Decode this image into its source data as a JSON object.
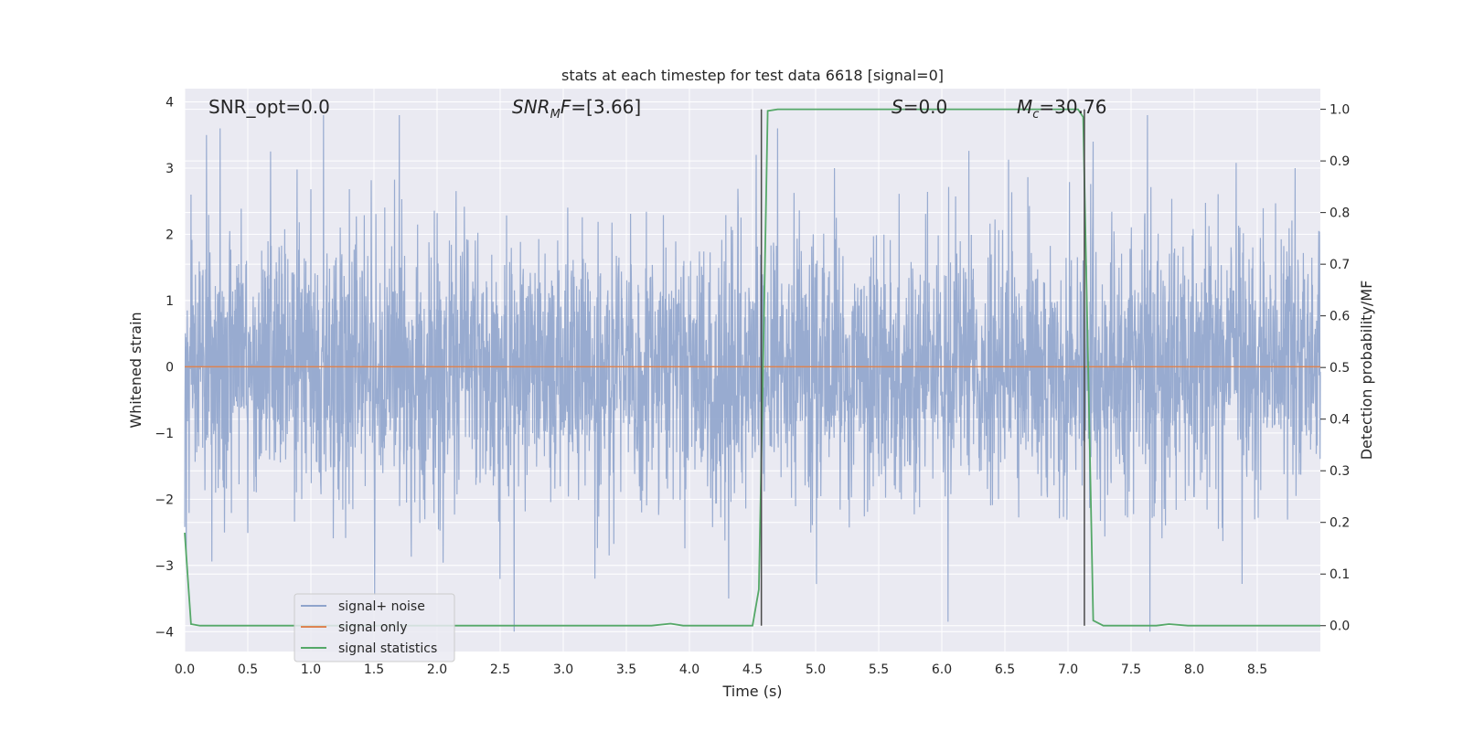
{
  "chart_data": {
    "type": "line",
    "title": "stats at each timestep for test data 6618 [signal=0]",
    "xlabel": "Time (s)",
    "ylabel": "Whitened strain",
    "y2label": "Detection probability/MF",
    "xlim": [
      0.0,
      9.0
    ],
    "ylim": [
      -4.3,
      4.2
    ],
    "y2lim": [
      -0.05,
      1.04
    ],
    "grid": true,
    "legend_position": "lower-left",
    "xticks": [
      "0.0",
      "0.5",
      "1.0",
      "1.5",
      "2.0",
      "2.5",
      "3.0",
      "3.5",
      "4.0",
      "4.5",
      "5.0",
      "5.5",
      "6.0",
      "6.5",
      "7.0",
      "7.5",
      "8.0",
      "8.5"
    ],
    "yticks": [
      "4",
      "3",
      "2",
      "1",
      "0",
      "−1",
      "−2",
      "−3",
      "−4"
    ],
    "y2ticks": [
      "1.0",
      "0.9",
      "0.8",
      "0.7",
      "0.6",
      "0.5",
      "0.4",
      "0.3",
      "0.2",
      "0.1",
      "0.0"
    ],
    "annotations": [
      {
        "html": "SNR_opt=0.0"
      },
      {
        "html": "<tspan font-style='italic'>SNR</tspan><tspan font-style='italic' font-size='13' dy='5'>M</tspan><tspan font-style='italic' dy='-5'>F</tspan>=[3.66]"
      },
      {
        "html": "<tspan font-style='italic'>S</tspan>=0.0"
      },
      {
        "html": "<tspan font-style='italic'>M</tspan><tspan font-style='italic' font-size='13' dy='5'>c</tspan><tspan dy='-5'>=30.76</tspan>"
      }
    ],
    "markers_x": [
      4.57,
      7.13
    ],
    "series": [
      {
        "name": "signal+ noise",
        "color": "#8fa4cc",
        "kind": "noise",
        "envelope_sd": 1.0,
        "peaks": [
          {
            "x": 0.05,
            "y": 2.6
          },
          {
            "x": 0.28,
            "y": 3.6
          },
          {
            "x": 0.68,
            "y": 3.25
          },
          {
            "x": 1.1,
            "y": 3.8
          },
          {
            "x": 1.7,
            "y": 3.8
          },
          {
            "x": 2.61,
            "y": -4.0
          },
          {
            "x": 3.25,
            "y": -3.2
          },
          {
            "x": 4.53,
            "y": 3.2
          },
          {
            "x": 4.7,
            "y": 3.6
          },
          {
            "x": 5.15,
            "y": 3.0
          },
          {
            "x": 6.05,
            "y": -3.85
          },
          {
            "x": 7.2,
            "y": 3.4
          },
          {
            "x": 7.63,
            "y": 3.8
          },
          {
            "x": 7.65,
            "y": -4.0
          },
          {
            "x": 8.8,
            "y": 3.0
          }
        ]
      },
      {
        "name": "signal only",
        "color": "#dd8452",
        "x": [
          0.0,
          9.0
        ],
        "y": [
          0.0,
          0.0
        ]
      },
      {
        "name": "signal statistics",
        "color": "#55a868",
        "axis": "right",
        "x": [
          0.0,
          0.05,
          0.12,
          0.5,
          1.0,
          2.0,
          3.0,
          3.7,
          3.85,
          3.95,
          4.2,
          4.5,
          4.55,
          4.58,
          4.62,
          4.7,
          5.0,
          6.0,
          7.0,
          7.08,
          7.12,
          7.2,
          7.28,
          7.5,
          7.7,
          7.8,
          7.95,
          8.5,
          9.0
        ],
        "y": [
          0.18,
          0.003,
          0.0,
          0.0,
          0.0,
          0.0,
          0.0,
          0.0,
          0.004,
          0.0,
          0.0,
          0.0,
          0.07,
          0.45,
          0.997,
          1.0,
          1.0,
          1.0,
          1.0,
          1.0,
          0.985,
          0.01,
          0.0,
          0.0,
          0.0,
          0.003,
          0.0,
          0.0,
          0.0
        ]
      }
    ]
  }
}
